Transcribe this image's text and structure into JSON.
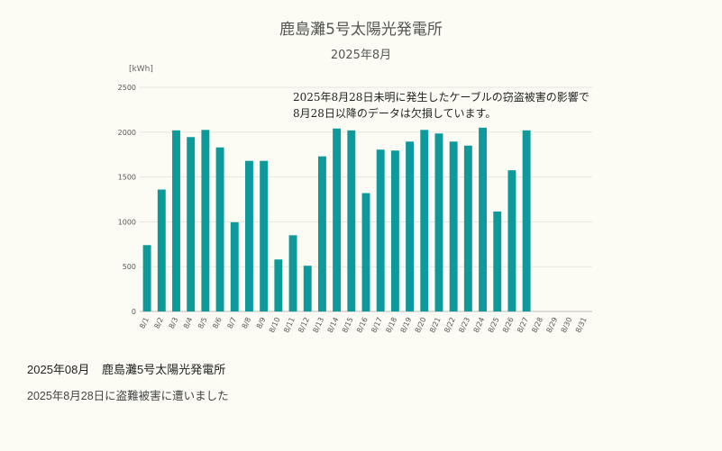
{
  "page": {
    "period": "2025年08月",
    "plant_name": "鹿島灘5号太陽光発電所",
    "note": "2025年8月28日に盗難被害に遭いました"
  },
  "chart_data": {
    "type": "bar",
    "title": "鹿島灘5号太陽光発電所",
    "subtitle": "2025年8月",
    "ylabel": "[kWh]",
    "xlabel": "",
    "ylim": [
      0,
      2500
    ],
    "yticks": [
      0,
      500,
      1000,
      1500,
      2000,
      2500
    ],
    "grid": true,
    "bar_color": "#0e9a9a",
    "annotation": [
      "2025年8月28日未明に発生したケーブルの窃盗被害の影響で",
      "8月28日以降のデータは欠損しています。"
    ],
    "categories": [
      "8/1",
      "8/2",
      "8/3",
      "8/4",
      "8/5",
      "8/6",
      "8/7",
      "8/8",
      "8/9",
      "8/10",
      "8/11",
      "8/12",
      "8/13",
      "8/14",
      "8/15",
      "8/16",
      "8/17",
      "8/18",
      "8/19",
      "8/20",
      "8/21",
      "8/22",
      "8/23",
      "8/24",
      "8/25",
      "8/26",
      "8/27",
      "8/28",
      "8/29",
      "8/30",
      "8/31"
    ],
    "values": [
      740,
      1360,
      2020,
      1945,
      2025,
      1830,
      995,
      1680,
      1680,
      580,
      850,
      510,
      1730,
      2040,
      2020,
      1320,
      1805,
      1795,
      1895,
      2025,
      1985,
      1895,
      1850,
      2050,
      1115,
      1575,
      2020,
      null,
      null,
      null,
      null
    ]
  }
}
